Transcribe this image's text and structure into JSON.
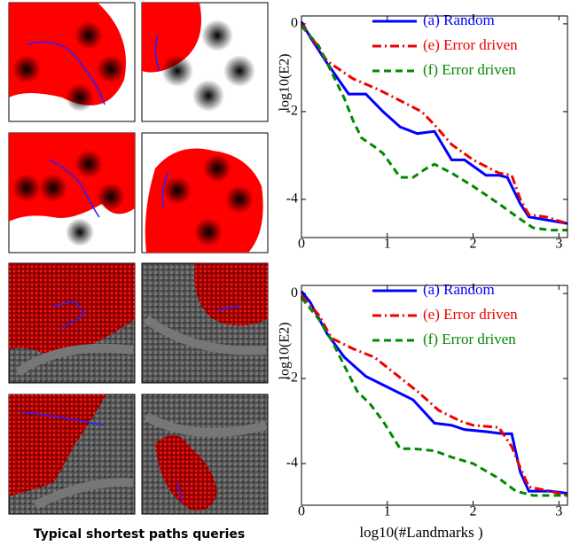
{
  "caption": "Typical shortest paths queries",
  "chart_data": [
    {
      "type": "line",
      "ylabel": "log10(E2)",
      "xlim": [
        0,
        3.1
      ],
      "ylim": [
        -4.87,
        0.18
      ],
      "xticks": [
        0,
        1,
        2,
        3
      ],
      "yticks": [
        0,
        -2,
        -4
      ],
      "series": [
        {
          "name": "(a) Random",
          "color": "#0000ff",
          "style": "solid",
          "x": [
            0,
            0.1,
            0.3,
            0.55,
            0.75,
            0.95,
            1.15,
            1.35,
            1.55,
            1.75,
            1.9,
            2.15,
            2.3,
            2.4,
            2.55,
            2.65,
            3.1
          ],
          "values": [
            0.05,
            -0.3,
            -0.9,
            -1.6,
            -1.6,
            -2.0,
            -2.35,
            -2.5,
            -2.45,
            -3.1,
            -3.1,
            -3.45,
            -3.45,
            -3.5,
            -4.1,
            -4.4,
            -4.55
          ]
        },
        {
          "name": "(e) Error driven",
          "color": "#ee0000",
          "style": "dashdot",
          "x": [
            0,
            0.15,
            0.3,
            0.6,
            0.9,
            1.2,
            1.4,
            1.55,
            1.75,
            2.0,
            2.3,
            2.45,
            2.55,
            2.65,
            2.85,
            3.1
          ],
          "values": [
            0,
            -0.4,
            -0.85,
            -1.25,
            -1.5,
            -1.8,
            -2.0,
            -2.3,
            -2.75,
            -3.1,
            -3.4,
            -3.45,
            -4.0,
            -4.35,
            -4.4,
            -4.55
          ]
        },
        {
          "name": "(f) Error driven",
          "color": "#008800",
          "style": "dashed",
          "x": [
            0,
            0.2,
            0.35,
            0.5,
            0.6,
            0.7,
            0.85,
            0.95,
            1.15,
            1.3,
            1.45,
            1.55,
            1.75,
            2.0,
            2.3,
            2.55,
            2.7,
            2.9,
            3.1
          ],
          "values": [
            -0.05,
            -0.5,
            -1.1,
            -1.7,
            -2.2,
            -2.6,
            -2.8,
            -2.95,
            -3.5,
            -3.5,
            -3.3,
            -3.2,
            -3.4,
            -3.7,
            -4.1,
            -4.45,
            -4.65,
            -4.7,
            -4.7
          ]
        }
      ]
    },
    {
      "type": "line",
      "ylabel": "log10(E2)",
      "xlabel": "log10(#Landmarks )",
      "xlim": [
        0,
        3.1
      ],
      "ylim": [
        -4.98,
        0.19
      ],
      "xticks": [
        0,
        1,
        2,
        3
      ],
      "yticks": [
        0,
        -2,
        -4
      ],
      "series": [
        {
          "name": "(a) Random",
          "color": "#0000ff",
          "style": "solid",
          "x": [
            0,
            0.1,
            0.3,
            0.5,
            0.75,
            1.0,
            1.3,
            1.55,
            1.75,
            1.9,
            2.15,
            2.35,
            2.45,
            2.55,
            2.65,
            2.9,
            3.1
          ],
          "values": [
            0.05,
            -0.2,
            -0.95,
            -1.5,
            -1.95,
            -2.2,
            -2.5,
            -3.05,
            -3.1,
            -3.2,
            -3.25,
            -3.3,
            -3.3,
            -4.2,
            -4.65,
            -4.65,
            -4.7
          ]
        },
        {
          "name": "(e) Error driven",
          "color": "#ee0000",
          "style": "dashdot",
          "x": [
            0,
            0.2,
            0.35,
            0.6,
            0.85,
            1.1,
            1.35,
            1.6,
            1.85,
            2.0,
            2.3,
            2.45,
            2.55,
            2.65,
            2.9,
            3.1
          ],
          "values": [
            -0.05,
            -0.5,
            -1.05,
            -1.3,
            -1.5,
            -1.9,
            -2.3,
            -2.75,
            -3.0,
            -3.1,
            -3.15,
            -3.6,
            -4.1,
            -4.55,
            -4.65,
            -4.75
          ]
        },
        {
          "name": "(f) Error driven",
          "color": "#008800",
          "style": "dashed",
          "x": [
            0,
            0.2,
            0.35,
            0.5,
            0.65,
            0.8,
            0.95,
            1.15,
            1.3,
            1.55,
            1.75,
            2.0,
            2.3,
            2.5,
            2.7,
            3.1
          ],
          "values": [
            -0.1,
            -0.6,
            -1.1,
            -1.7,
            -2.3,
            -2.6,
            -3.0,
            -3.65,
            -3.65,
            -3.7,
            -3.85,
            -4.0,
            -4.35,
            -4.65,
            -4.75,
            -4.75
          ]
        }
      ]
    }
  ]
}
